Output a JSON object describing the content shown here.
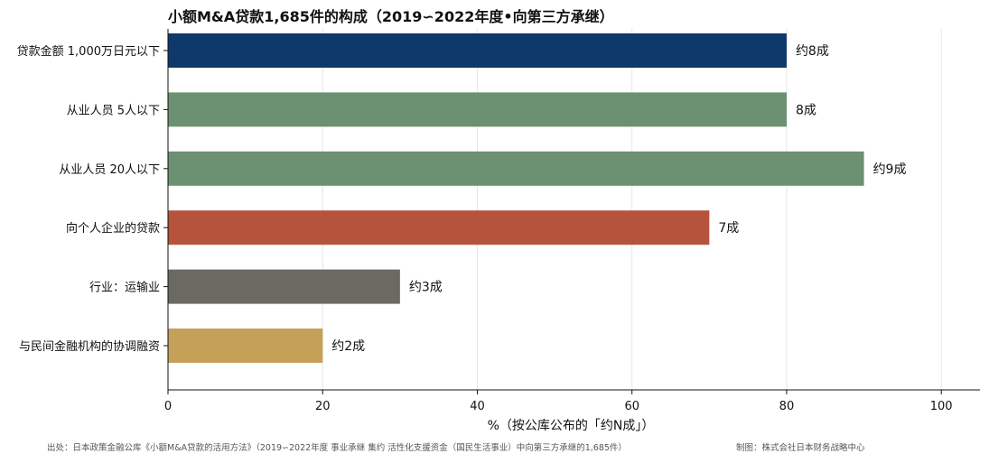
{
  "chart_data": {
    "type": "bar",
    "orientation": "horizontal",
    "title": "小额M&A贷款1,685件的构成（2019∽2022年度•向第三方承继）",
    "xlabel": "%（按公库公布的「约N成」）",
    "ylabel": "",
    "xlim": [
      0,
      105
    ],
    "xticks": [
      "0",
      "20",
      "40",
      "60",
      "80",
      "100"
    ],
    "xtick_values": [
      0,
      20,
      40,
      60,
      80,
      100
    ],
    "grid": "vertical",
    "categories": [
      "贷款金额 1,000万日元以下",
      "从业人员 5人以下",
      "从业人员 20人以下",
      "向个人企业的贷款",
      "行业：运输业",
      "与民间金融机构的协调融资"
    ],
    "values": [
      80,
      80,
      90,
      70,
      30,
      20
    ],
    "data_labels": [
      "约8成",
      "8成",
      "约9成",
      "7成",
      "约3成",
      "约2成"
    ],
    "colors": [
      "#0f386b",
      "#6b9172",
      "#6b9172",
      "#b5533c",
      "#6a6a62",
      "#c4a058"
    ]
  },
  "footer": {
    "source": "出处：日本政策金融公库《小额M&A贷款的活用方法》（2019∽2022年度 事业承继 集约 活性化支援资金（国民生活事业）中向第三方承继的1,685件）",
    "credit": "制图：株式会社日本财务战略中心"
  }
}
